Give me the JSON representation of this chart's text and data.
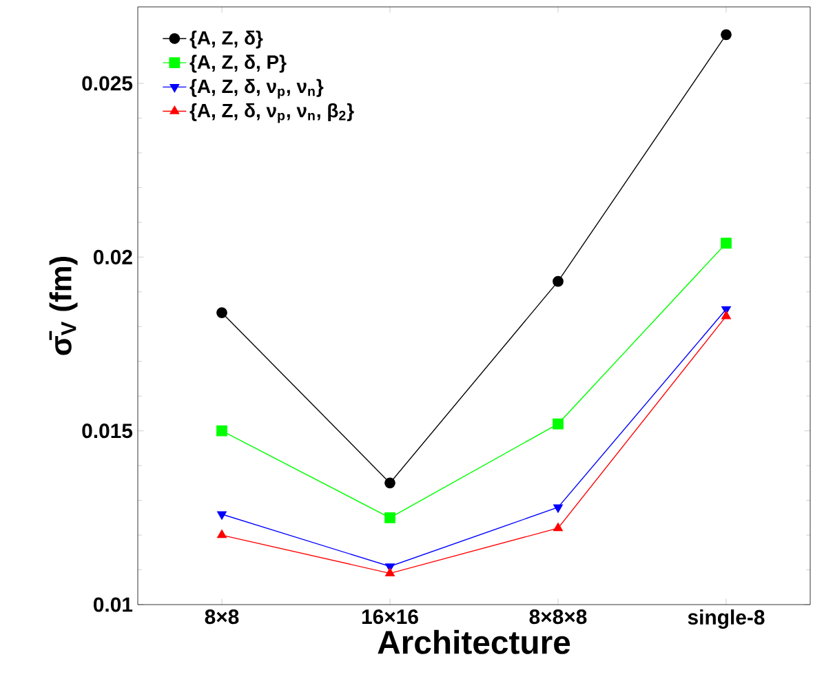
{
  "chart_data": {
    "type": "line",
    "xlabel": "Architecture",
    "ylabel": "σ̄$_{V}$ (fm)",
    "categories": [
      "8×8",
      "16×16",
      "8×8×8",
      "single-8"
    ],
    "ylim": [
      0.01,
      0.0272
    ],
    "yticks": [
      0.01,
      0.015,
      0.02,
      0.025
    ],
    "grid": false,
    "legend": "top left",
    "series": [
      {
        "name": "{A, Z, δ}",
        "color": "#000000",
        "marker": "circle",
        "values": [
          0.0184,
          0.0135,
          0.0193,
          0.0264
        ]
      },
      {
        "name": "{A, Z, δ, P}",
        "color": "#00ff00",
        "marker": "square",
        "values": [
          0.015,
          0.0125,
          0.0152,
          0.0204
        ]
      },
      {
        "name": "{A, Z, δ, ν$_{p}$, ν$_{n}$}",
        "color": "#0000ff",
        "marker": "triangle_down",
        "values": [
          0.0126,
          0.0111,
          0.0128,
          0.0185
        ]
      },
      {
        "name": "{A, Z, δ, ν$_{p}$, ν$_{n}$, β$_{2}$}",
        "color": "#ff0000",
        "marker": "triangle",
        "values": [
          0.012,
          0.0109,
          0.0122,
          0.0183
        ]
      }
    ]
  }
}
